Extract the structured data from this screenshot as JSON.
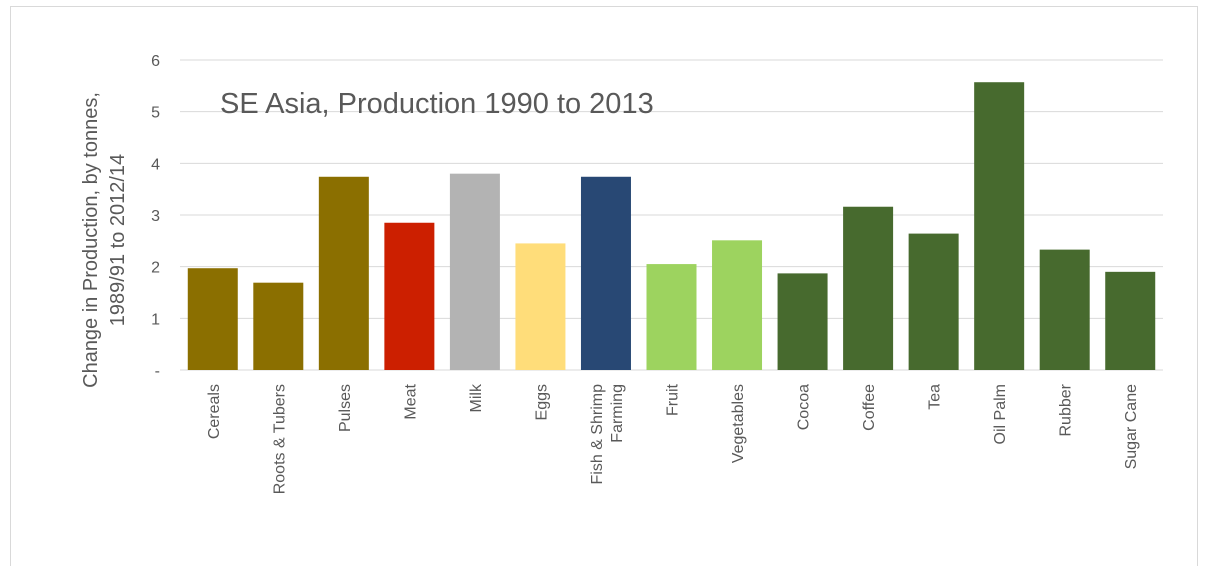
{
  "chart_data": {
    "type": "bar",
    "title": "SE Asia, Production 1990 to 2013",
    "ylabel": [
      "Change in Production, by tonnes,",
      "1989/91 to 2012/14"
    ],
    "xlabel": "",
    "ylim": [
      0,
      6
    ],
    "yticks": [
      {
        "value": 0,
        "label": "-"
      },
      {
        "value": 1,
        "label": "1"
      },
      {
        "value": 2,
        "label": "2"
      },
      {
        "value": 3,
        "label": "3"
      },
      {
        "value": 4,
        "label": "4"
      },
      {
        "value": 5,
        "label": "5"
      },
      {
        "value": 6,
        "label": "6"
      }
    ],
    "grid": true,
    "legend": "none",
    "categories": [
      {
        "label": [
          "Cereals"
        ],
        "value": 1.97,
        "color": "#8b6f00"
      },
      {
        "label": [
          "Roots & Tubers"
        ],
        "value": 1.69,
        "color": "#8b6f00"
      },
      {
        "label": [
          "Pulses"
        ],
        "value": 3.74,
        "color": "#8b6f00"
      },
      {
        "label": [
          "Meat"
        ],
        "value": 2.85,
        "color": "#cc1f00"
      },
      {
        "label": [
          "Milk"
        ],
        "value": 3.8,
        "color": "#b3b3b3"
      },
      {
        "label": [
          "Eggs"
        ],
        "value": 2.45,
        "color": "#ffdd7a"
      },
      {
        "label": [
          "Fish & Shrimp",
          "Farming"
        ],
        "value": 3.74,
        "color": "#284874"
      },
      {
        "label": [
          "Fruit"
        ],
        "value": 2.05,
        "color": "#9dd35f"
      },
      {
        "label": [
          "Vegetables"
        ],
        "value": 2.51,
        "color": "#9dd35f"
      },
      {
        "label": [
          "Cocoa"
        ],
        "value": 1.87,
        "color": "#476a2e"
      },
      {
        "label": [
          "Coffee"
        ],
        "value": 3.16,
        "color": "#476a2e"
      },
      {
        "label": [
          "Tea"
        ],
        "value": 2.64,
        "color": "#476a2e"
      },
      {
        "label": [
          "Oil Palm"
        ],
        "value": 5.57,
        "color": "#476a2e"
      },
      {
        "label": [
          "Rubber"
        ],
        "value": 2.33,
        "color": "#476a2e"
      },
      {
        "label": [
          "Sugar Cane"
        ],
        "value": 1.9,
        "color": "#476a2e"
      }
    ]
  }
}
